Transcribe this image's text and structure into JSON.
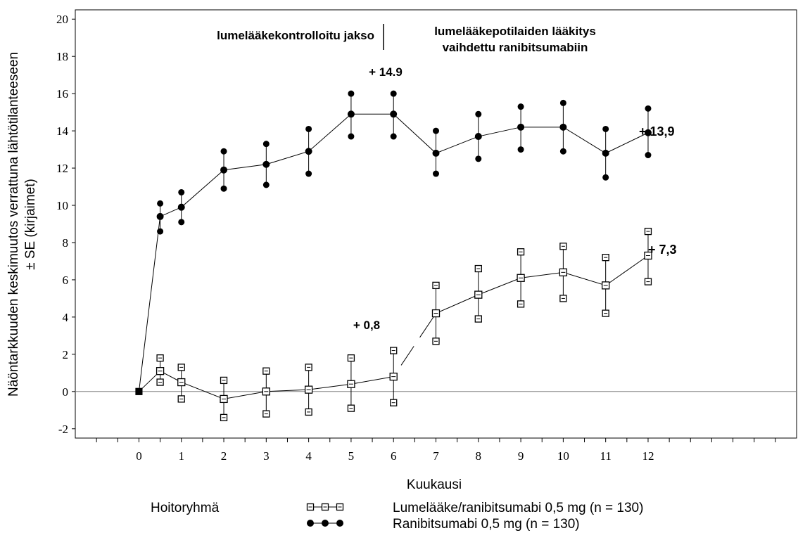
{
  "chart_data": {
    "type": "line",
    "xlabel": "Kuukausi",
    "ylabel_lines": [
      "Näöntarkkuuden keskimuutos verrattuna lähtötilanteeseen",
      "± SE (kirjaimet)"
    ],
    "xlim": [
      -1.5,
      15.5
    ],
    "ylim": [
      -2.5,
      20.5
    ],
    "x_ticks": [
      "0",
      "1",
      "2",
      "3",
      "4",
      "5",
      "6",
      "7",
      "8",
      "9",
      "10",
      "11",
      "12"
    ],
    "y_ticks": [
      "-2",
      "0",
      "2",
      "4",
      "6",
      "8",
      "10",
      "12",
      "14",
      "16",
      "18",
      "20"
    ],
    "period_labels": {
      "left": "lumelääkekontrolloitu jakso",
      "right_line1": "lumelääkepotilaiden lääkitys",
      "right_line2": "vaihdettu ranibitsumabiin"
    },
    "annotations": {
      "ranibizumab_month6": "+ 14.9",
      "placebo_month6": "+ 0,8",
      "ranibizumab_final": "+ 13,9",
      "placebo_final": "+ 7,3"
    },
    "legend": {
      "title": "Hoitoryhmä",
      "entries": [
        {
          "label": "Lumelääke/ranibitsumabi 0,5 mg (n = 130)",
          "marker": "open-square",
          "color": "#000000"
        },
        {
          "label": "Ranibitsumabi 0,5 mg (n = 130)",
          "marker": "filled-circle",
          "color": "#000000"
        }
      ]
    },
    "series": [
      {
        "id": "ranibizumab",
        "marker": "filled-circle",
        "x": [
          0,
          0.5,
          1,
          2,
          3,
          4,
          5,
          6,
          7,
          8,
          9,
          10,
          11,
          12
        ],
        "y": [
          0,
          9.4,
          9.9,
          11.9,
          12.2,
          12.9,
          14.9,
          14.9,
          12.8,
          13.7,
          14.2,
          14.2,
          12.8,
          13.9
        ],
        "lower": [
          0,
          8.6,
          9.1,
          10.9,
          11.1,
          11.7,
          13.7,
          13.7,
          11.7,
          12.5,
          13.0,
          12.9,
          11.5,
          12.7
        ],
        "upper": [
          0,
          10.1,
          10.7,
          12.9,
          13.3,
          14.1,
          16.0,
          16.0,
          14.0,
          14.9,
          15.3,
          15.5,
          14.1,
          15.2
        ]
      },
      {
        "id": "placebo",
        "marker": "open-square",
        "x": [
          0,
          0.5,
          1,
          2,
          3,
          4,
          5,
          6,
          7,
          8,
          9,
          10,
          11,
          12
        ],
        "y": [
          0,
          1.1,
          0.5,
          -0.4,
          0.0,
          0.1,
          0.4,
          0.8,
          4.2,
          5.2,
          6.1,
          6.4,
          5.7,
          7.3
        ],
        "lower": [
          0,
          0.5,
          -0.4,
          -1.4,
          -1.2,
          -1.1,
          -0.9,
          -0.6,
          2.7,
          3.9,
          4.7,
          5.0,
          4.2,
          5.9
        ],
        "upper": [
          0,
          1.8,
          1.3,
          0.6,
          1.1,
          1.3,
          1.8,
          2.2,
          5.7,
          6.6,
          7.5,
          7.8,
          7.2,
          8.6
        ]
      }
    ]
  }
}
